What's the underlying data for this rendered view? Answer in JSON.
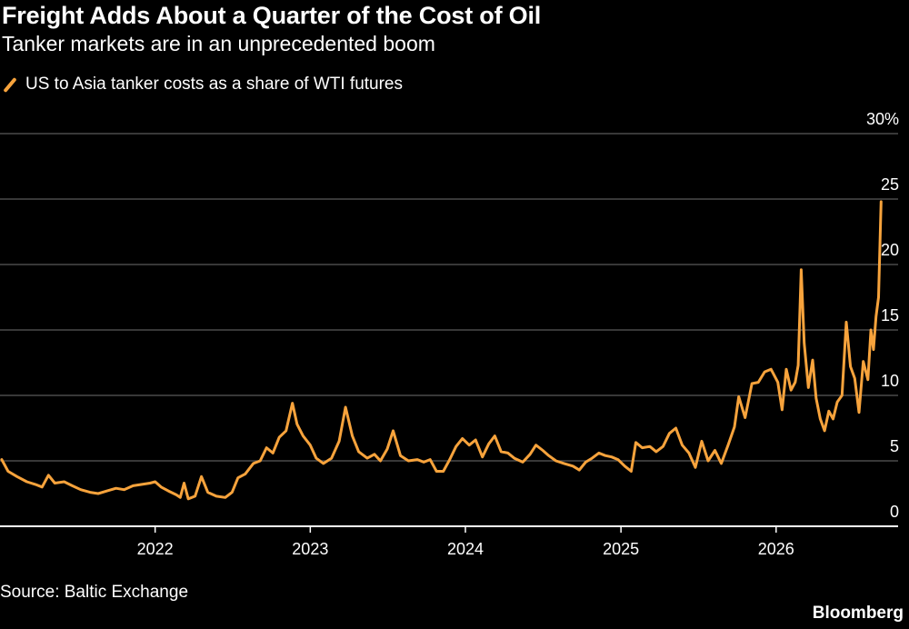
{
  "header": {
    "title": "Freight Adds About a Quarter of the Cost of Oil",
    "subtitle": "Tanker markets are in an unprecedented boom"
  },
  "legend": {
    "label": "US to Asia tanker costs as a share of WTI futures",
    "icon": "line-swatch-icon"
  },
  "footer": {
    "source": "Source: Baltic Exchange",
    "brand": "Bloomberg"
  },
  "colors": {
    "background": "#000000",
    "series": "#f7a33c",
    "grid": "#5a5a5a",
    "axis": "#ffffff",
    "text": "#ffffff"
  },
  "chart_data": {
    "type": "line",
    "ylim": [
      0,
      30
    ],
    "xlim": [
      "2021-01-01",
      "2026-10-15"
    ],
    "y_ticks": [
      {
        "value": 0,
        "label": "0"
      },
      {
        "value": 5,
        "label": "5"
      },
      {
        "value": 10,
        "label": "10"
      },
      {
        "value": 15,
        "label": "15"
      },
      {
        "value": 20,
        "label": "20"
      },
      {
        "value": 25,
        "label": "25"
      },
      {
        "value": 30,
        "label": "30%"
      }
    ],
    "x_ticks": [
      {
        "date": "2022-01-01",
        "label": "2022"
      },
      {
        "date": "2023-01-01",
        "label": "2023"
      },
      {
        "date": "2024-01-01",
        "label": "2024"
      },
      {
        "date": "2025-01-01",
        "label": "2025"
      },
      {
        "date": "2026-01-01",
        "label": "2026"
      }
    ],
    "grid": true,
    "legend_position": "top-left",
    "series": [
      {
        "name": "US to Asia tanker costs as a share of WTI futures",
        "points": [
          [
            "2021-01-05",
            5.1
          ],
          [
            "2021-01-20",
            4.2
          ],
          [
            "2021-02-10",
            3.8
          ],
          [
            "2021-03-05",
            3.4
          ],
          [
            "2021-03-25",
            3.2
          ],
          [
            "2021-04-10",
            3.0
          ],
          [
            "2021-04-25",
            3.9
          ],
          [
            "2021-05-10",
            3.3
          ],
          [
            "2021-06-01",
            3.4
          ],
          [
            "2021-06-20",
            3.1
          ],
          [
            "2021-07-10",
            2.8
          ],
          [
            "2021-08-01",
            2.6
          ],
          [
            "2021-08-20",
            2.5
          ],
          [
            "2021-09-10",
            2.7
          ],
          [
            "2021-10-01",
            2.9
          ],
          [
            "2021-10-20",
            2.8
          ],
          [
            "2021-11-10",
            3.1
          ],
          [
            "2021-12-01",
            3.2
          ],
          [
            "2021-12-20",
            3.3
          ],
          [
            "2022-01-01",
            3.4
          ],
          [
            "2022-01-15",
            3.0
          ],
          [
            "2022-02-01",
            2.7
          ],
          [
            "2022-02-20",
            2.4
          ],
          [
            "2022-03-01",
            2.2
          ],
          [
            "2022-03-10",
            3.3
          ],
          [
            "2022-03-20",
            2.1
          ],
          [
            "2022-04-05",
            2.3
          ],
          [
            "2022-04-20",
            3.8
          ],
          [
            "2022-05-05",
            2.6
          ],
          [
            "2022-05-25",
            2.3
          ],
          [
            "2022-06-15",
            2.2
          ],
          [
            "2022-07-01",
            2.6
          ],
          [
            "2022-07-15",
            3.7
          ],
          [
            "2022-08-01",
            4.0
          ],
          [
            "2022-08-20",
            4.8
          ],
          [
            "2022-09-05",
            5.0
          ],
          [
            "2022-09-20",
            6.0
          ],
          [
            "2022-10-05",
            5.6
          ],
          [
            "2022-10-20",
            6.8
          ],
          [
            "2022-11-05",
            7.3
          ],
          [
            "2022-11-20",
            9.4
          ],
          [
            "2022-12-01",
            7.8
          ],
          [
            "2022-12-15",
            6.9
          ],
          [
            "2023-01-01",
            6.2
          ],
          [
            "2023-01-15",
            5.2
          ],
          [
            "2023-02-01",
            4.8
          ],
          [
            "2023-02-20",
            5.2
          ],
          [
            "2023-03-10",
            6.5
          ],
          [
            "2023-03-25",
            9.1
          ],
          [
            "2023-04-10",
            6.9
          ],
          [
            "2023-04-25",
            5.7
          ],
          [
            "2023-05-15",
            5.2
          ],
          [
            "2023-06-01",
            5.5
          ],
          [
            "2023-06-15",
            5.0
          ],
          [
            "2023-07-01",
            5.9
          ],
          [
            "2023-07-15",
            7.3
          ],
          [
            "2023-08-01",
            5.4
          ],
          [
            "2023-08-20",
            5.0
          ],
          [
            "2023-09-10",
            5.1
          ],
          [
            "2023-09-25",
            4.9
          ],
          [
            "2023-10-10",
            5.1
          ],
          [
            "2023-10-25",
            4.2
          ],
          [
            "2023-11-10",
            4.2
          ],
          [
            "2023-11-25",
            5.1
          ],
          [
            "2023-12-10",
            6.1
          ],
          [
            "2023-12-25",
            6.7
          ],
          [
            "2024-01-10",
            6.2
          ],
          [
            "2024-01-25",
            6.6
          ],
          [
            "2024-02-10",
            5.3
          ],
          [
            "2024-02-25",
            6.3
          ],
          [
            "2024-03-10",
            6.9
          ],
          [
            "2024-03-25",
            5.7
          ],
          [
            "2024-04-10",
            5.6
          ],
          [
            "2024-04-25",
            5.2
          ],
          [
            "2024-05-15",
            4.9
          ],
          [
            "2024-06-01",
            5.5
          ],
          [
            "2024-06-15",
            6.2
          ],
          [
            "2024-07-01",
            5.8
          ],
          [
            "2024-07-15",
            5.4
          ],
          [
            "2024-08-01",
            5.0
          ],
          [
            "2024-08-20",
            4.8
          ],
          [
            "2024-09-10",
            4.6
          ],
          [
            "2024-09-25",
            4.3
          ],
          [
            "2024-10-10",
            4.9
          ],
          [
            "2024-10-25",
            5.2
          ],
          [
            "2024-11-10",
            5.6
          ],
          [
            "2024-11-25",
            5.4
          ],
          [
            "2024-12-10",
            5.3
          ],
          [
            "2024-12-25",
            5.1
          ],
          [
            "2025-01-10",
            4.6
          ],
          [
            "2025-01-25",
            4.2
          ],
          [
            "2025-02-05",
            6.4
          ],
          [
            "2025-02-20",
            6.0
          ],
          [
            "2025-03-10",
            6.1
          ],
          [
            "2025-03-25",
            5.7
          ],
          [
            "2025-04-10",
            6.1
          ],
          [
            "2025-04-25",
            7.1
          ],
          [
            "2025-05-10",
            7.5
          ],
          [
            "2025-05-25",
            6.2
          ],
          [
            "2025-06-10",
            5.6
          ],
          [
            "2025-06-25",
            4.5
          ],
          [
            "2025-07-10",
            6.5
          ],
          [
            "2025-07-25",
            5.0
          ],
          [
            "2025-08-10",
            5.8
          ],
          [
            "2025-08-25",
            4.8
          ],
          [
            "2025-09-10",
            6.2
          ],
          [
            "2025-09-25",
            7.6
          ],
          [
            "2025-10-05",
            9.9
          ],
          [
            "2025-10-20",
            8.3
          ],
          [
            "2025-11-05",
            10.9
          ],
          [
            "2025-11-20",
            11.0
          ],
          [
            "2025-12-05",
            11.8
          ],
          [
            "2025-12-20",
            12.0
          ],
          [
            "2026-01-05",
            11.0
          ],
          [
            "2026-01-15",
            8.9
          ],
          [
            "2026-01-25",
            12.0
          ],
          [
            "2026-02-05",
            10.4
          ],
          [
            "2026-02-15",
            11.0
          ],
          [
            "2026-02-22",
            12.3
          ],
          [
            "2026-03-01",
            19.6
          ],
          [
            "2026-03-08",
            14.0
          ],
          [
            "2026-03-18",
            10.6
          ],
          [
            "2026-03-28",
            12.7
          ],
          [
            "2026-04-05",
            9.8
          ],
          [
            "2026-04-15",
            8.2
          ],
          [
            "2026-04-25",
            7.3
          ],
          [
            "2026-05-05",
            8.8
          ],
          [
            "2026-05-15",
            8.2
          ],
          [
            "2026-05-25",
            9.5
          ],
          [
            "2026-06-05",
            10.0
          ],
          [
            "2026-06-15",
            15.6
          ],
          [
            "2026-06-25",
            12.2
          ],
          [
            "2026-07-05",
            11.3
          ],
          [
            "2026-07-15",
            8.7
          ],
          [
            "2026-07-25",
            12.6
          ],
          [
            "2026-08-05",
            11.2
          ],
          [
            "2026-08-12",
            15.0
          ],
          [
            "2026-08-18",
            13.5
          ],
          [
            "2026-08-24",
            16.0
          ],
          [
            "2026-08-30",
            17.5
          ],
          [
            "2026-09-05",
            24.8
          ]
        ]
      }
    ]
  }
}
